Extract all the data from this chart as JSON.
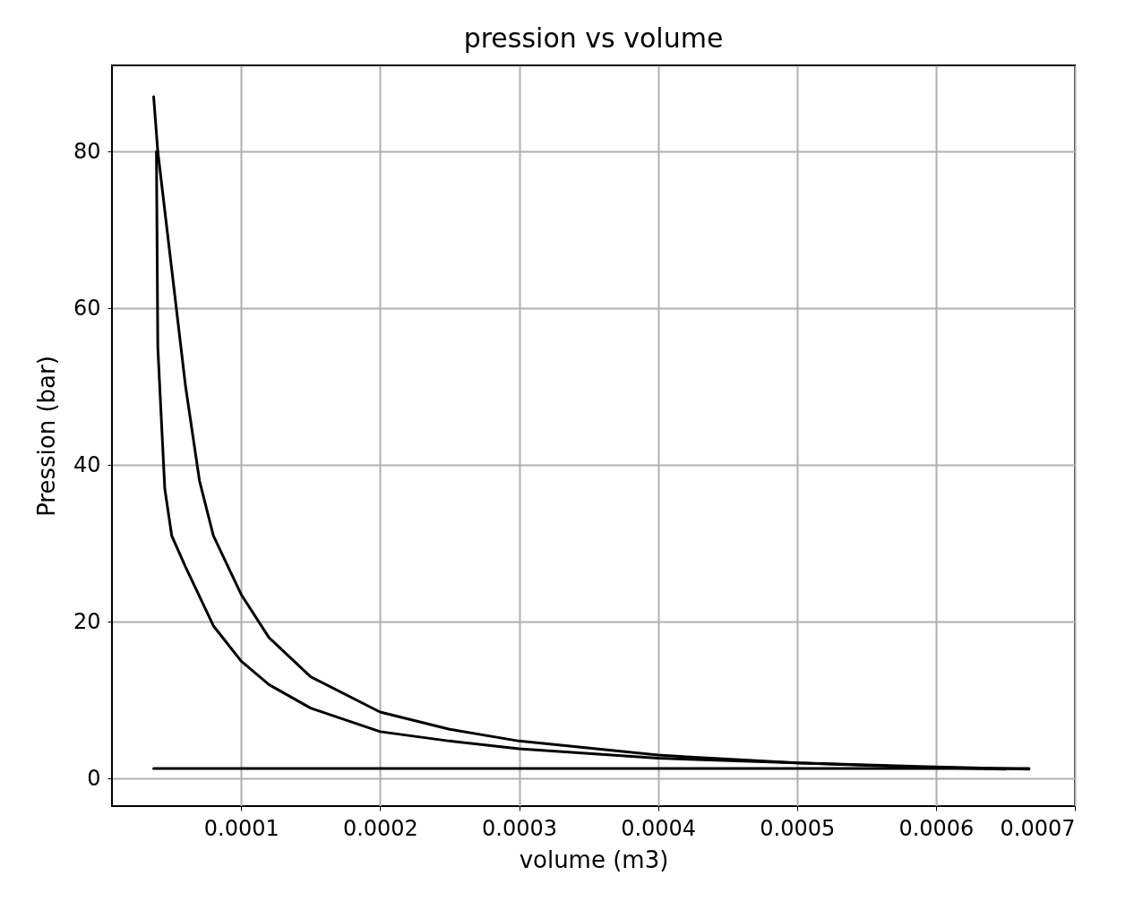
{
  "chart_data": {
    "type": "line",
    "title": "pression vs volume",
    "xlabel": "volume (m3)",
    "ylabel": "Pression (bar)",
    "xlim": [
      7e-06,
      0.0007
    ],
    "ylim": [
      -3.5,
      91
    ],
    "xticks": [
      0.0001,
      0.0002,
      0.0003,
      0.0004,
      0.0005,
      0.0006,
      0.0007
    ],
    "yticks": [
      0,
      20,
      40,
      60,
      80
    ],
    "grid": true,
    "line_style": "solid",
    "marker": "none",
    "series": [
      {
        "color": "#000000",
        "x": [
          3.9e-05,
          4e-05,
          4.5e-05,
          5e-05,
          6e-05,
          8e-05,
          0.0001,
          0.00012,
          0.00015,
          0.0002,
          0.00025,
          0.0003,
          0.0004,
          0.0005,
          0.0006,
          0.00065
        ],
        "values": [
          80,
          55,
          37,
          31,
          27,
          19.5,
          15,
          12,
          9,
          6,
          4.8,
          3.8,
          2.6,
          2.0,
          1.4,
          1.2
        ]
      },
      {
        "color": "#000000",
        "x": [
          3.7e-05,
          4e-05,
          5e-05,
          6e-05,
          7e-05,
          8e-05,
          0.0001,
          0.00012,
          0.00015,
          0.0002,
          0.00025,
          0.0003,
          0.0004,
          0.0005,
          0.0006,
          0.000667
        ],
        "values": [
          87,
          80,
          65,
          50,
          38,
          31,
          23.5,
          18,
          13,
          8.5,
          6.3,
          4.8,
          3,
          2,
          1.5,
          1.2
        ]
      },
      {
        "color": "#000000",
        "x": [
          3.7e-05,
          0.000667
        ],
        "values": [
          1.3,
          1.3
        ]
      }
    ]
  }
}
